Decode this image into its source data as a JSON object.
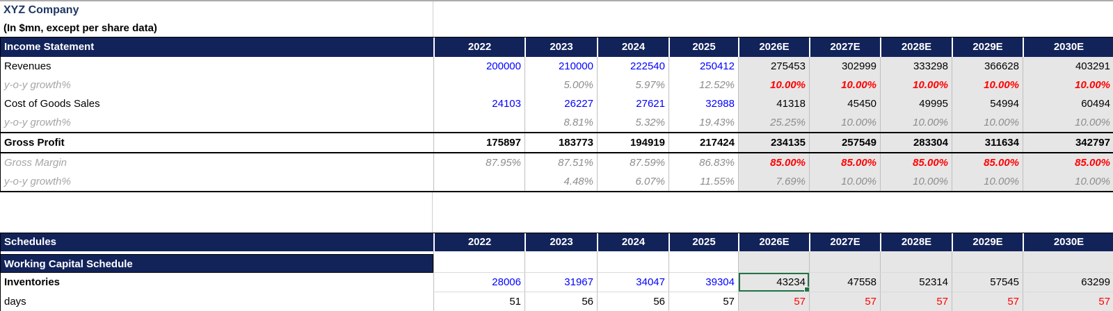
{
  "company": {
    "title": "XYZ Company",
    "subtitle": "(In $mn, except per share data)"
  },
  "years": [
    "2022",
    "2023",
    "2024",
    "2025",
    "2026E",
    "2027E",
    "2028E",
    "2029E",
    "2030E"
  ],
  "income_statement": {
    "section_title": "Income Statement",
    "rows": [
      {
        "label": "Revenues",
        "values": [
          "200000",
          "210000",
          "222540",
          "250412",
          "275453",
          "302999",
          "333298",
          "366628",
          "403291"
        ]
      },
      {
        "label": "y-o-y growth%",
        "values": [
          "",
          "5.00%",
          "5.97%",
          "12.52%",
          "10.00%",
          "10.00%",
          "10.00%",
          "10.00%",
          "10.00%"
        ]
      },
      {
        "label": "Cost of Goods Sales",
        "values": [
          "24103",
          "26227",
          "27621",
          "32988",
          "41318",
          "45450",
          "49995",
          "54994",
          "60494"
        ]
      },
      {
        "label": "y-o-y growth%",
        "values": [
          "",
          "8.81%",
          "5.32%",
          "19.43%",
          "25.25%",
          "10.00%",
          "10.00%",
          "10.00%",
          "10.00%"
        ]
      },
      {
        "label": "Gross Profit",
        "values": [
          "175897",
          "183773",
          "194919",
          "217424",
          "234135",
          "257549",
          "283304",
          "311634",
          "342797"
        ]
      },
      {
        "label": "Gross Margin",
        "values": [
          "87.95%",
          "87.51%",
          "87.59%",
          "86.83%",
          "85.00%",
          "85.00%",
          "85.00%",
          "85.00%",
          "85.00%"
        ]
      },
      {
        "label": "y-o-y growth%",
        "values": [
          "",
          "4.48%",
          "6.07%",
          "11.55%",
          "7.69%",
          "10.00%",
          "10.00%",
          "10.00%",
          "10.00%"
        ]
      }
    ]
  },
  "schedules": {
    "section_title": "Schedules",
    "subsection_title": "Working Capital Schedule",
    "rows": [
      {
        "label": "Inventories",
        "values": [
          "28006",
          "31967",
          "34047",
          "39304",
          "43234",
          "47558",
          "52314",
          "57545",
          "63299"
        ]
      },
      {
        "label": "days",
        "values": [
          "51",
          "56",
          "56",
          "57",
          "57",
          "57",
          "57",
          "57",
          "57"
        ]
      }
    ]
  },
  "selection": {
    "row": "Inventories",
    "column": "2026E",
    "value": "43234"
  },
  "colors": {
    "header_navy": "#12235A",
    "title_navy": "#1F3864",
    "estimate_fill": "#E7E6E6",
    "input_blue": "#0000FF",
    "assumption_red": "#FF0000",
    "muted_gray": "#8C8C8C",
    "selection_green": "#217346"
  }
}
